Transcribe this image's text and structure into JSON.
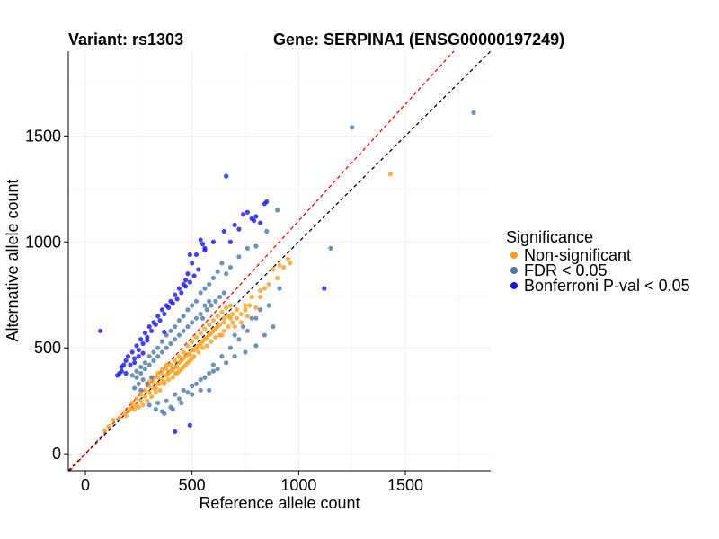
{
  "chart_data": {
    "type": "scatter",
    "title_left": "Variant: rs1303",
    "title_right": "Gene: SERPINA1 (ENSG00000197249)",
    "xlabel": "Reference allele count",
    "ylabel": "Alternative allele count",
    "xlim": [
      -80,
      1900
    ],
    "ylim": [
      -80,
      1900
    ],
    "x_ticks": [
      0,
      500,
      1000,
      1500
    ],
    "y_ticks": [
      0,
      500,
      1000,
      1500
    ],
    "grid": true,
    "reference_lines": [
      {
        "name": "identity",
        "slope": 1.0,
        "intercept": 0,
        "color": "#000000",
        "style": "dashed"
      },
      {
        "name": "fit",
        "slope": 1.1,
        "intercept": 0,
        "color": "#ff0000",
        "style": "dashed"
      }
    ],
    "legend": {
      "title": "Significance",
      "position": "right",
      "entries": [
        {
          "label": "Non-significant",
          "color": "#ff9f1c"
        },
        {
          "label": "FDR < 0.05",
          "color": "#4a78a8"
        },
        {
          "label": "Bonferroni P-val < 0.05",
          "color": "#1414f0"
        }
      ]
    },
    "series": [
      {
        "name": "Non-significant",
        "color": "#ff9f1c",
        "points": [
          [
            1430,
            1320
          ],
          [
            960,
            900
          ],
          [
            930,
            880
          ],
          [
            900,
            830
          ],
          [
            860,
            800
          ],
          [
            820,
            770
          ],
          [
            780,
            740
          ],
          [
            750,
            700
          ],
          [
            710,
            680
          ],
          [
            680,
            640
          ],
          [
            650,
            620
          ],
          [
            620,
            600
          ],
          [
            600,
            580
          ],
          [
            580,
            560
          ],
          [
            560,
            540
          ],
          [
            540,
            520
          ],
          [
            520,
            500
          ],
          [
            500,
            490
          ],
          [
            480,
            470
          ],
          [
            460,
            450
          ],
          [
            440,
            430
          ],
          [
            420,
            410
          ],
          [
            400,
            390
          ],
          [
            380,
            370
          ],
          [
            360,
            350
          ],
          [
            340,
            330
          ],
          [
            320,
            310
          ],
          [
            300,
            290
          ],
          [
            280,
            270
          ],
          [
            260,
            250
          ],
          [
            240,
            230
          ],
          [
            220,
            220
          ],
          [
            200,
            200
          ],
          [
            180,
            190
          ],
          [
            160,
            170
          ],
          [
            130,
            160
          ],
          [
            110,
            130
          ],
          [
            90,
            110
          ],
          [
            330,
            290
          ],
          [
            350,
            300
          ],
          [
            370,
            330
          ],
          [
            390,
            350
          ],
          [
            410,
            360
          ],
          [
            430,
            380
          ],
          [
            450,
            400
          ],
          [
            470,
            420
          ],
          [
            490,
            440
          ],
          [
            510,
            460
          ],
          [
            530,
            480
          ],
          [
            550,
            500
          ],
          [
            570,
            510
          ],
          [
            590,
            530
          ],
          [
            610,
            550
          ],
          [
            630,
            560
          ],
          [
            650,
            580
          ],
          [
            670,
            600
          ],
          [
            690,
            620
          ],
          [
            710,
            640
          ],
          [
            730,
            660
          ],
          [
            750,
            680
          ],
          [
            770,
            700
          ],
          [
            300,
            320
          ],
          [
            320,
            340
          ],
          [
            340,
            360
          ],
          [
            360,
            380
          ],
          [
            380,
            400
          ],
          [
            400,
            420
          ],
          [
            420,
            440
          ],
          [
            440,
            460
          ],
          [
            460,
            480
          ],
          [
            480,
            510
          ],
          [
            500,
            530
          ],
          [
            520,
            550
          ],
          [
            540,
            570
          ],
          [
            560,
            590
          ],
          [
            580,
            610
          ],
          [
            600,
            630
          ],
          [
            620,
            650
          ],
          [
            640,
            670
          ],
          [
            660,
            690
          ],
          [
            680,
            700
          ],
          [
            260,
            280
          ],
          [
            280,
            300
          ],
          [
            240,
            260
          ],
          [
            220,
            240
          ],
          [
            290,
            250
          ],
          [
            310,
            270
          ],
          [
            330,
            310
          ],
          [
            350,
            330
          ],
          [
            370,
            340
          ],
          [
            390,
            380
          ],
          [
            410,
            400
          ],
          [
            430,
            410
          ],
          [
            450,
            440
          ],
          [
            470,
            460
          ],
          [
            490,
            470
          ],
          [
            510,
            490
          ],
          [
            530,
            510
          ],
          [
            550,
            530
          ],
          [
            570,
            550
          ],
          [
            590,
            570
          ],
          [
            610,
            590
          ],
          [
            630,
            610
          ],
          [
            650,
            640
          ],
          [
            670,
            650
          ],
          [
            690,
            660
          ],
          [
            820,
            740
          ],
          [
            840,
            780
          ],
          [
            880,
            870
          ],
          [
            910,
            890
          ],
          [
            950,
            920
          ],
          [
            640,
            560
          ],
          [
            700,
            600
          ],
          [
            730,
            620
          ],
          [
            760,
            650
          ],
          [
            800,
            690
          ],
          [
            420,
            380
          ],
          [
            440,
            390
          ],
          [
            460,
            410
          ],
          [
            480,
            430
          ],
          [
            500,
            450
          ],
          [
            380,
            420
          ],
          [
            360,
            400
          ],
          [
            340,
            380
          ],
          [
            320,
            360
          ],
          [
            300,
            340
          ],
          [
            270,
            230
          ],
          [
            250,
            220
          ],
          [
            230,
            210
          ],
          [
            210,
            210
          ],
          [
            190,
            180
          ]
        ]
      },
      {
        "name": "FDR < 0.05",
        "color": "#4a78a8",
        "points": [
          [
            1250,
            1540
          ],
          [
            1820,
            1610
          ],
          [
            1150,
            970
          ],
          [
            900,
            1150
          ],
          [
            850,
            1050
          ],
          [
            800,
            980
          ],
          [
            760,
            970
          ],
          [
            720,
            930
          ],
          [
            680,
            880
          ],
          [
            660,
            850
          ],
          [
            640,
            900
          ],
          [
            620,
            860
          ],
          [
            600,
            830
          ],
          [
            580,
            800
          ],
          [
            560,
            780
          ],
          [
            540,
            760
          ],
          [
            520,
            720
          ],
          [
            500,
            700
          ],
          [
            480,
            680
          ],
          [
            460,
            650
          ],
          [
            440,
            630
          ],
          [
            420,
            600
          ],
          [
            400,
            580
          ],
          [
            380,
            560
          ],
          [
            360,
            530
          ],
          [
            340,
            500
          ],
          [
            320,
            480
          ],
          [
            300,
            460
          ],
          [
            280,
            430
          ],
          [
            260,
            410
          ],
          [
            240,
            390
          ],
          [
            220,
            370
          ],
          [
            520,
            640
          ],
          [
            540,
            660
          ],
          [
            560,
            700
          ],
          [
            580,
            720
          ],
          [
            500,
            620
          ],
          [
            480,
            600
          ],
          [
            460,
            580
          ],
          [
            440,
            560
          ],
          [
            420,
            540
          ],
          [
            400,
            520
          ],
          [
            380,
            500
          ],
          [
            360,
            480
          ],
          [
            340,
            460
          ],
          [
            320,
            440
          ],
          [
            300,
            420
          ],
          [
            280,
            400
          ],
          [
            260,
            380
          ],
          [
            240,
            360
          ],
          [
            600,
            420
          ],
          [
            640,
            460
          ],
          [
            680,
            500
          ],
          [
            720,
            540
          ],
          [
            760,
            580
          ],
          [
            800,
            640
          ],
          [
            700,
            460
          ],
          [
            660,
            430
          ],
          [
            620,
            400
          ],
          [
            580,
            380
          ],
          [
            540,
            350
          ],
          [
            500,
            320
          ],
          [
            460,
            300
          ],
          [
            420,
            280
          ],
          [
            380,
            250
          ],
          [
            340,
            240
          ],
          [
            300,
            230
          ],
          [
            400,
            220
          ],
          [
            360,
            200
          ],
          [
            440,
            260
          ],
          [
            480,
            290
          ],
          [
            520,
            330
          ],
          [
            560,
            360
          ],
          [
            600,
            390
          ],
          [
            880,
            600
          ],
          [
            840,
            560
          ],
          [
            800,
            510
          ],
          [
            750,
            480
          ],
          [
            910,
            780
          ],
          [
            860,
            700
          ],
          [
            820,
            680
          ],
          [
            780,
            640
          ],
          [
            740,
            600
          ],
          [
            700,
            560
          ],
          [
            580,
            300
          ],
          [
            540,
            300
          ],
          [
            500,
            280
          ],
          [
            450,
            240
          ],
          [
            410,
            210
          ],
          [
            330,
            210
          ],
          [
            370,
            190
          ],
          [
            260,
            300
          ],
          [
            290,
            330
          ],
          [
            310,
            360
          ],
          [
            270,
            350
          ],
          [
            250,
            330
          ],
          [
            230,
            310
          ],
          [
            650,
            760
          ],
          [
            630,
            740
          ],
          [
            610,
            720
          ],
          [
            590,
            700
          ],
          [
            570,
            680
          ],
          [
            550,
            640
          ]
        ]
      },
      {
        "name": "Bonferroni P-val < 0.05",
        "color": "#1414f0",
        "points": [
          [
            660,
            1310
          ],
          [
            850,
            1190
          ],
          [
            840,
            1180
          ],
          [
            740,
            1130
          ],
          [
            780,
            1110
          ],
          [
            800,
            1120
          ],
          [
            790,
            1100
          ],
          [
            700,
            1080
          ],
          [
            650,
            1050
          ],
          [
            600,
            1000
          ],
          [
            560,
            960
          ],
          [
            540,
            1010
          ],
          [
            550,
            990
          ],
          [
            560,
            970
          ],
          [
            520,
            940
          ],
          [
            500,
            900
          ],
          [
            490,
            940
          ],
          [
            480,
            850
          ],
          [
            470,
            820
          ],
          [
            460,
            800
          ],
          [
            440,
            780
          ],
          [
            420,
            750
          ],
          [
            400,
            720
          ],
          [
            380,
            700
          ],
          [
            360,
            680
          ],
          [
            340,
            650
          ],
          [
            320,
            620
          ],
          [
            300,
            600
          ],
          [
            280,
            570
          ],
          [
            260,
            540
          ],
          [
            240,
            510
          ],
          [
            220,
            480
          ],
          [
            200,
            460
          ],
          [
            190,
            440
          ],
          [
            180,
            420
          ],
          [
            170,
            410
          ],
          [
            170,
            390
          ],
          [
            160,
            380
          ],
          [
            150,
            370
          ],
          [
            190,
            380
          ],
          [
            210,
            420
          ],
          [
            230,
            450
          ],
          [
            250,
            490
          ],
          [
            270,
            520
          ],
          [
            290,
            550
          ],
          [
            310,
            580
          ],
          [
            330,
            610
          ],
          [
            350,
            630
          ],
          [
            370,
            660
          ],
          [
            390,
            690
          ],
          [
            410,
            710
          ],
          [
            430,
            730
          ],
          [
            450,
            760
          ],
          [
            470,
            790
          ],
          [
            490,
            810
          ],
          [
            510,
            840
          ],
          [
            530,
            870
          ],
          [
            680,
            1000
          ],
          [
            720,
            1060
          ],
          [
            760,
            1140
          ],
          [
            820,
            1090
          ],
          [
            70,
            580
          ],
          [
            1120,
            780
          ],
          [
            420,
            105
          ],
          [
            490,
            135
          ],
          [
            370,
            575
          ],
          [
            290,
            535
          ],
          [
            270,
            475
          ],
          [
            250,
            460
          ],
          [
            230,
            430
          ]
        ]
      }
    ]
  }
}
